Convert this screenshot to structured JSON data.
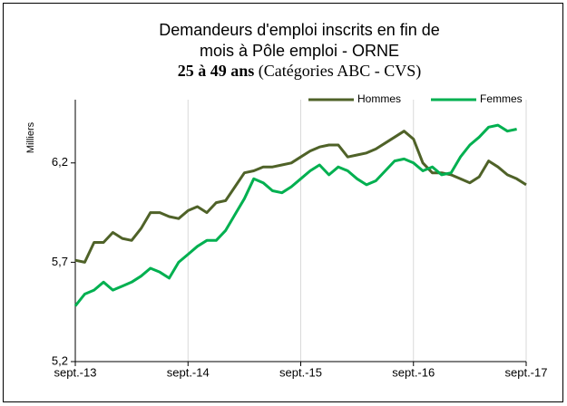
{
  "chart_data": {
    "type": "line",
    "title_lines": [
      "Demandeurs  d'emploi inscrits en fin de",
      "mois à Pôle emploi - ORNE"
    ],
    "subtitle_bold": "25 à 49 ans",
    "subtitle": "(Catégories ABC - CVS)",
    "y_label": "Milliers",
    "categories": [
      "sept.-13",
      null,
      null,
      null,
      null,
      null,
      null,
      null,
      null,
      null,
      null,
      null,
      "sept.-14",
      null,
      null,
      null,
      null,
      null,
      null,
      null,
      null,
      null,
      null,
      null,
      "sept.-15",
      null,
      null,
      null,
      null,
      null,
      null,
      null,
      null,
      null,
      null,
      null,
      "sept.-16",
      null,
      null,
      null,
      null,
      null,
      null,
      null,
      null,
      null,
      null,
      null,
      "sept.-17"
    ],
    "series": [
      {
        "name": "Hommes",
        "color": "#4f6228",
        "values": [
          5.71,
          5.7,
          5.8,
          5.8,
          5.85,
          5.82,
          5.81,
          5.87,
          5.95,
          5.95,
          5.93,
          5.92,
          5.96,
          5.98,
          5.95,
          6.0,
          6.01,
          6.08,
          6.15,
          6.16,
          6.18,
          6.18,
          6.19,
          6.2,
          6.23,
          6.26,
          6.28,
          6.29,
          6.29,
          6.23,
          6.24,
          6.25,
          6.27,
          6.3,
          6.33,
          6.36,
          6.32,
          6.2,
          6.15,
          6.15,
          6.14,
          6.12,
          6.1,
          6.13,
          6.21,
          6.18,
          6.14,
          6.12,
          6.09
        ]
      },
      {
        "name": "Femmes",
        "color": "#00b050",
        "values": [
          5.48,
          5.54,
          5.56,
          5.6,
          5.56,
          5.58,
          5.6,
          5.63,
          5.67,
          5.65,
          5.62,
          5.7,
          5.74,
          5.78,
          5.81,
          5.81,
          5.86,
          5.94,
          6.02,
          6.12,
          6.1,
          6.06,
          6.05,
          6.08,
          6.12,
          6.16,
          6.19,
          6.14,
          6.18,
          6.16,
          6.12,
          6.09,
          6.11,
          6.16,
          6.21,
          6.22,
          6.2,
          6.16,
          6.18,
          6.14,
          6.15,
          6.23,
          6.29,
          6.33,
          6.38,
          6.39,
          6.36,
          6.37,
          null
        ]
      }
    ],
    "ylim": [
      5.2,
      6.5
    ],
    "yticks": [
      {
        "value": 5.2,
        "label": "5,2"
      },
      {
        "value": 5.7,
        "label": "5,7"
      },
      {
        "value": 6.2,
        "label": "6,2"
      }
    ],
    "grid": "x",
    "legend": "top-right"
  }
}
